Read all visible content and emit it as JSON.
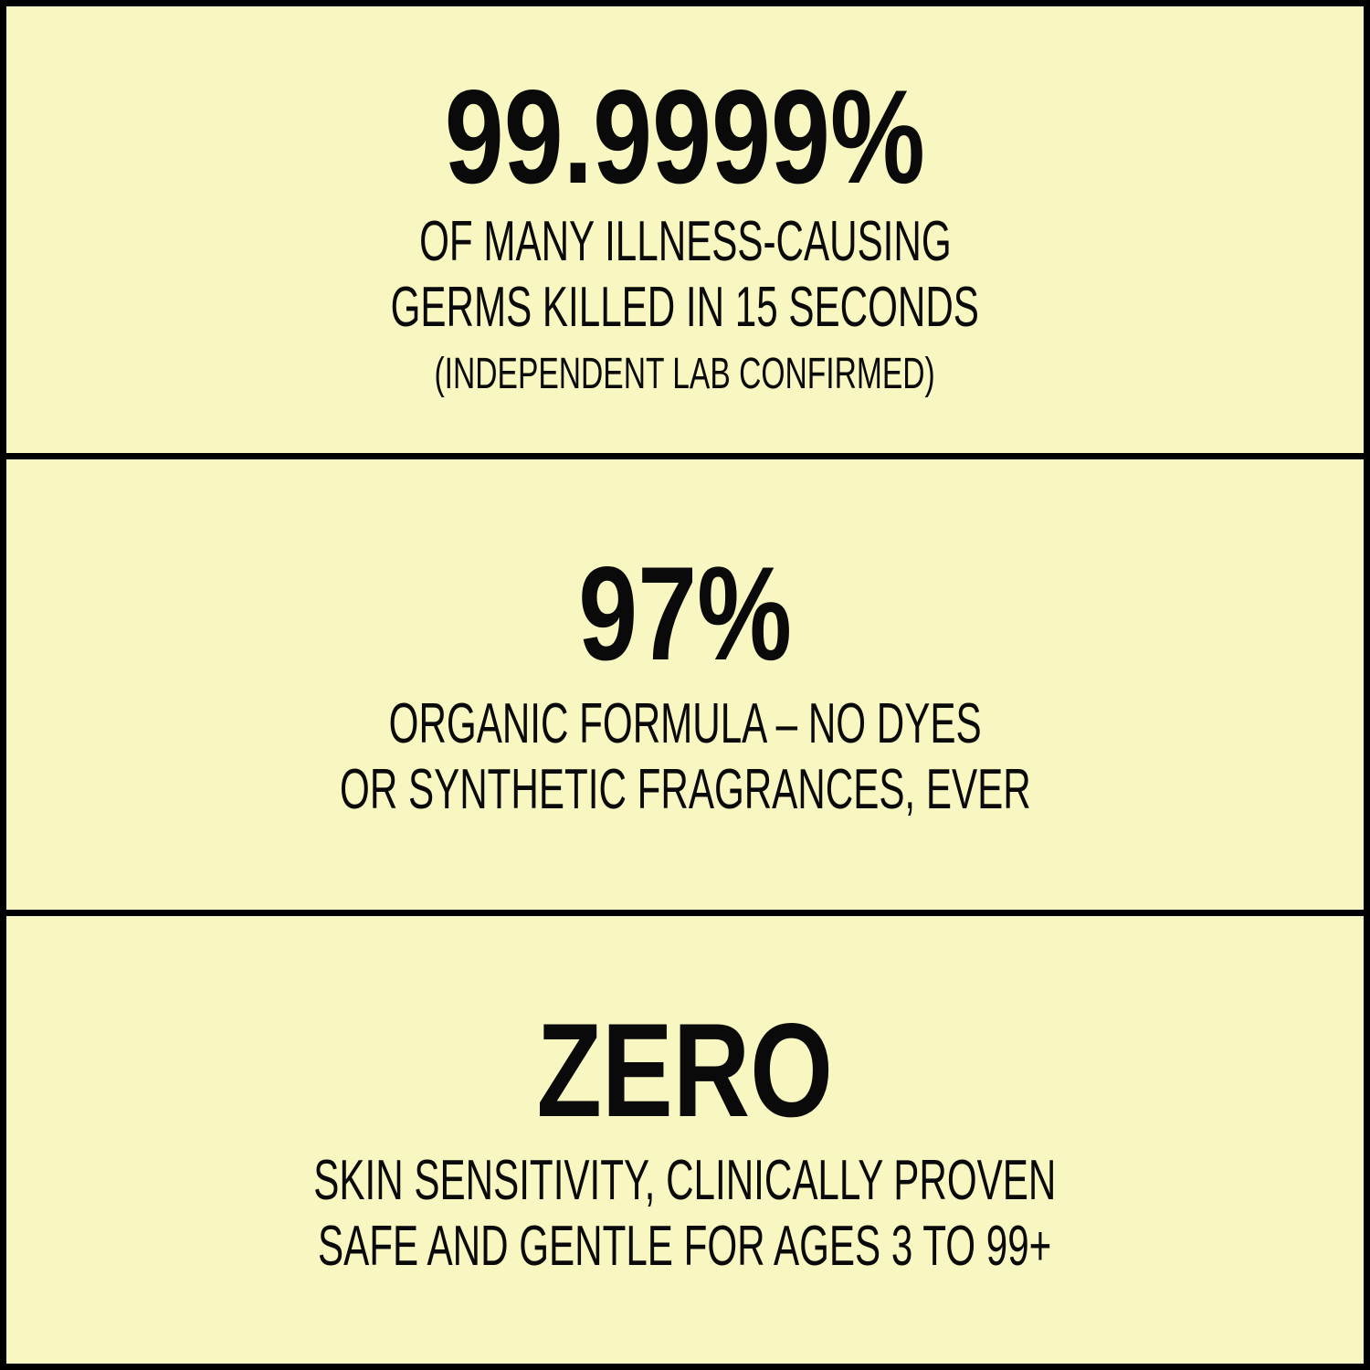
{
  "background_color": "#f8f7c1",
  "border_color": "#000000",
  "panels": [
    {
      "headline": "99.9999%",
      "lines": [
        "OF MANY ILLNESS-CAUSING",
        "GERMS KILLED IN 15 SECONDS"
      ],
      "note": "(INDEPENDENT LAB CONFIRMED)"
    },
    {
      "headline": "97%",
      "lines": [
        "ORGANIC FORMULA – NO DYES",
        "OR SYNTHETIC FRAGRANCES, EVER"
      ]
    },
    {
      "headline": "ZERO",
      "lines": [
        "SKIN SENSITIVITY, CLINICALLY PROVEN",
        "SAFE AND GENTLE FOR  AGES 3 TO 99+"
      ]
    }
  ]
}
